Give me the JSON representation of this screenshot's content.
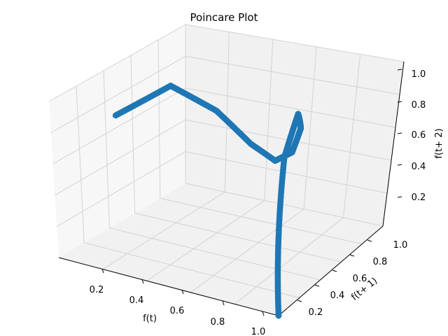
{
  "chart_data": {
    "type": "scatter",
    "title": "Poincare Plot",
    "xlabel": "f(t)",
    "ylabel": "f(t+ 1)",
    "zlabel": "f(t+ 2)",
    "x_ticks": [
      "0.2",
      "0.4",
      "0.6",
      "0.8",
      "1.0"
    ],
    "y_ticks": [
      "0.2",
      "0.4",
      "0.6",
      "0.8",
      "1.0"
    ],
    "z_ticks": [
      "0.2",
      "0.4",
      "0.6",
      "0.8",
      "1.0"
    ],
    "grid": true,
    "series": [
      {
        "color": "#1f77b4",
        "marker": "o",
        "points": [
          [
            0.1,
            0.324,
            0.786
          ],
          [
            0.2,
            0.576,
            0.878
          ],
          [
            0.3,
            0.756,
            0.657
          ],
          [
            0.4,
            0.864,
            0.422
          ],
          [
            0.5,
            0.9,
            0.324
          ],
          [
            0.6,
            0.864,
            0.422
          ],
          [
            0.7,
            0.756,
            0.657
          ],
          [
            0.8,
            0.576,
            0.878
          ],
          [
            0.9,
            0.324,
            0.786
          ],
          [
            1.0,
            0.0,
            0.0
          ]
        ]
      }
    ]
  }
}
